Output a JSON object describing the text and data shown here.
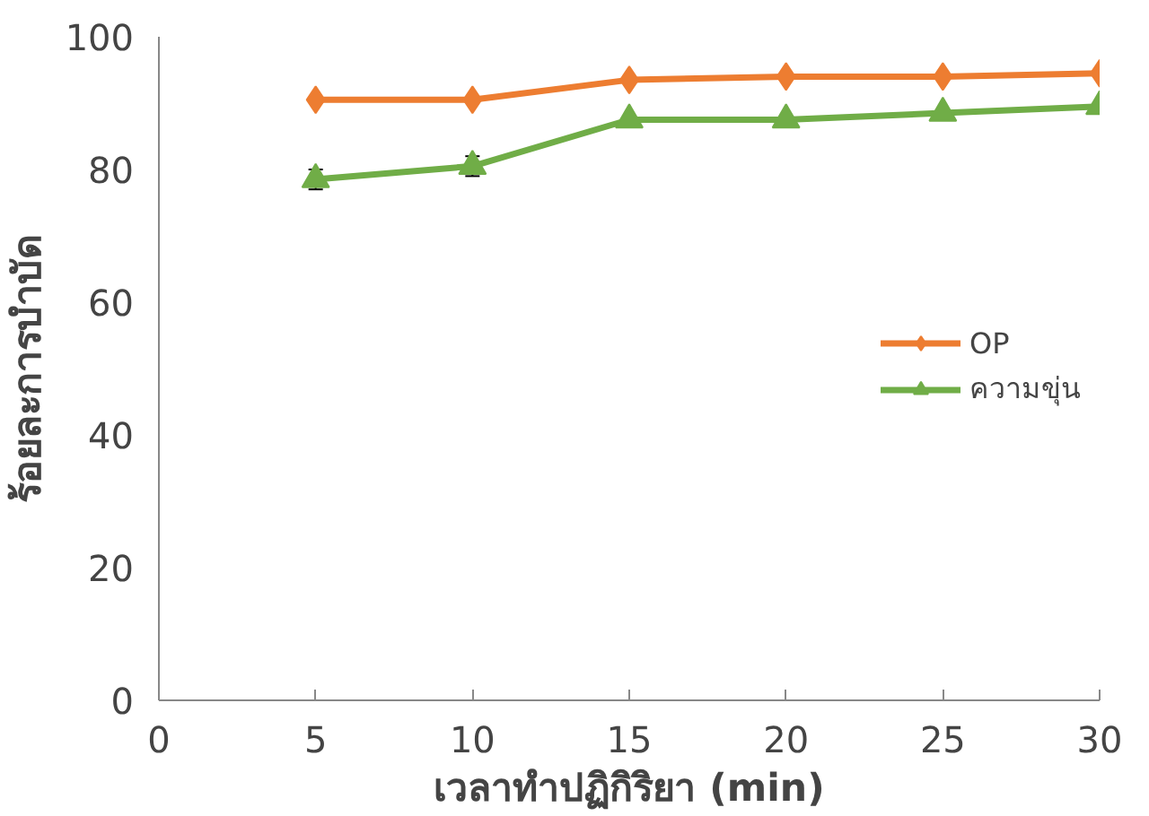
{
  "chart_data": {
    "type": "line",
    "xlabel": "เวลาทำปฏิกิริยา (min)",
    "ylabel": "ร้อยละการบำบัด",
    "x": [
      5,
      10,
      15,
      20,
      25,
      30
    ],
    "series": [
      {
        "name": "OP",
        "color": "#ed7d31",
        "marker": "diamond",
        "values": [
          90.5,
          90.5,
          93.5,
          94,
          94,
          94.5
        ]
      },
      {
        "name": "ความขุ่น",
        "color": "#70ad47",
        "marker": "triangle",
        "values": [
          78.5,
          80.5,
          87.5,
          87.5,
          88.5,
          89.5
        ],
        "errors": [
          1.5,
          1.5,
          null,
          null,
          null,
          null
        ]
      }
    ],
    "xlim": [
      0,
      30
    ],
    "xticks": [
      0,
      5,
      10,
      15,
      20,
      25,
      30
    ],
    "ylim": [
      0,
      100
    ],
    "yticks": [
      0,
      20,
      40,
      60,
      80,
      100
    ],
    "grid": false,
    "legend": "right",
    "line_style": "solid"
  }
}
